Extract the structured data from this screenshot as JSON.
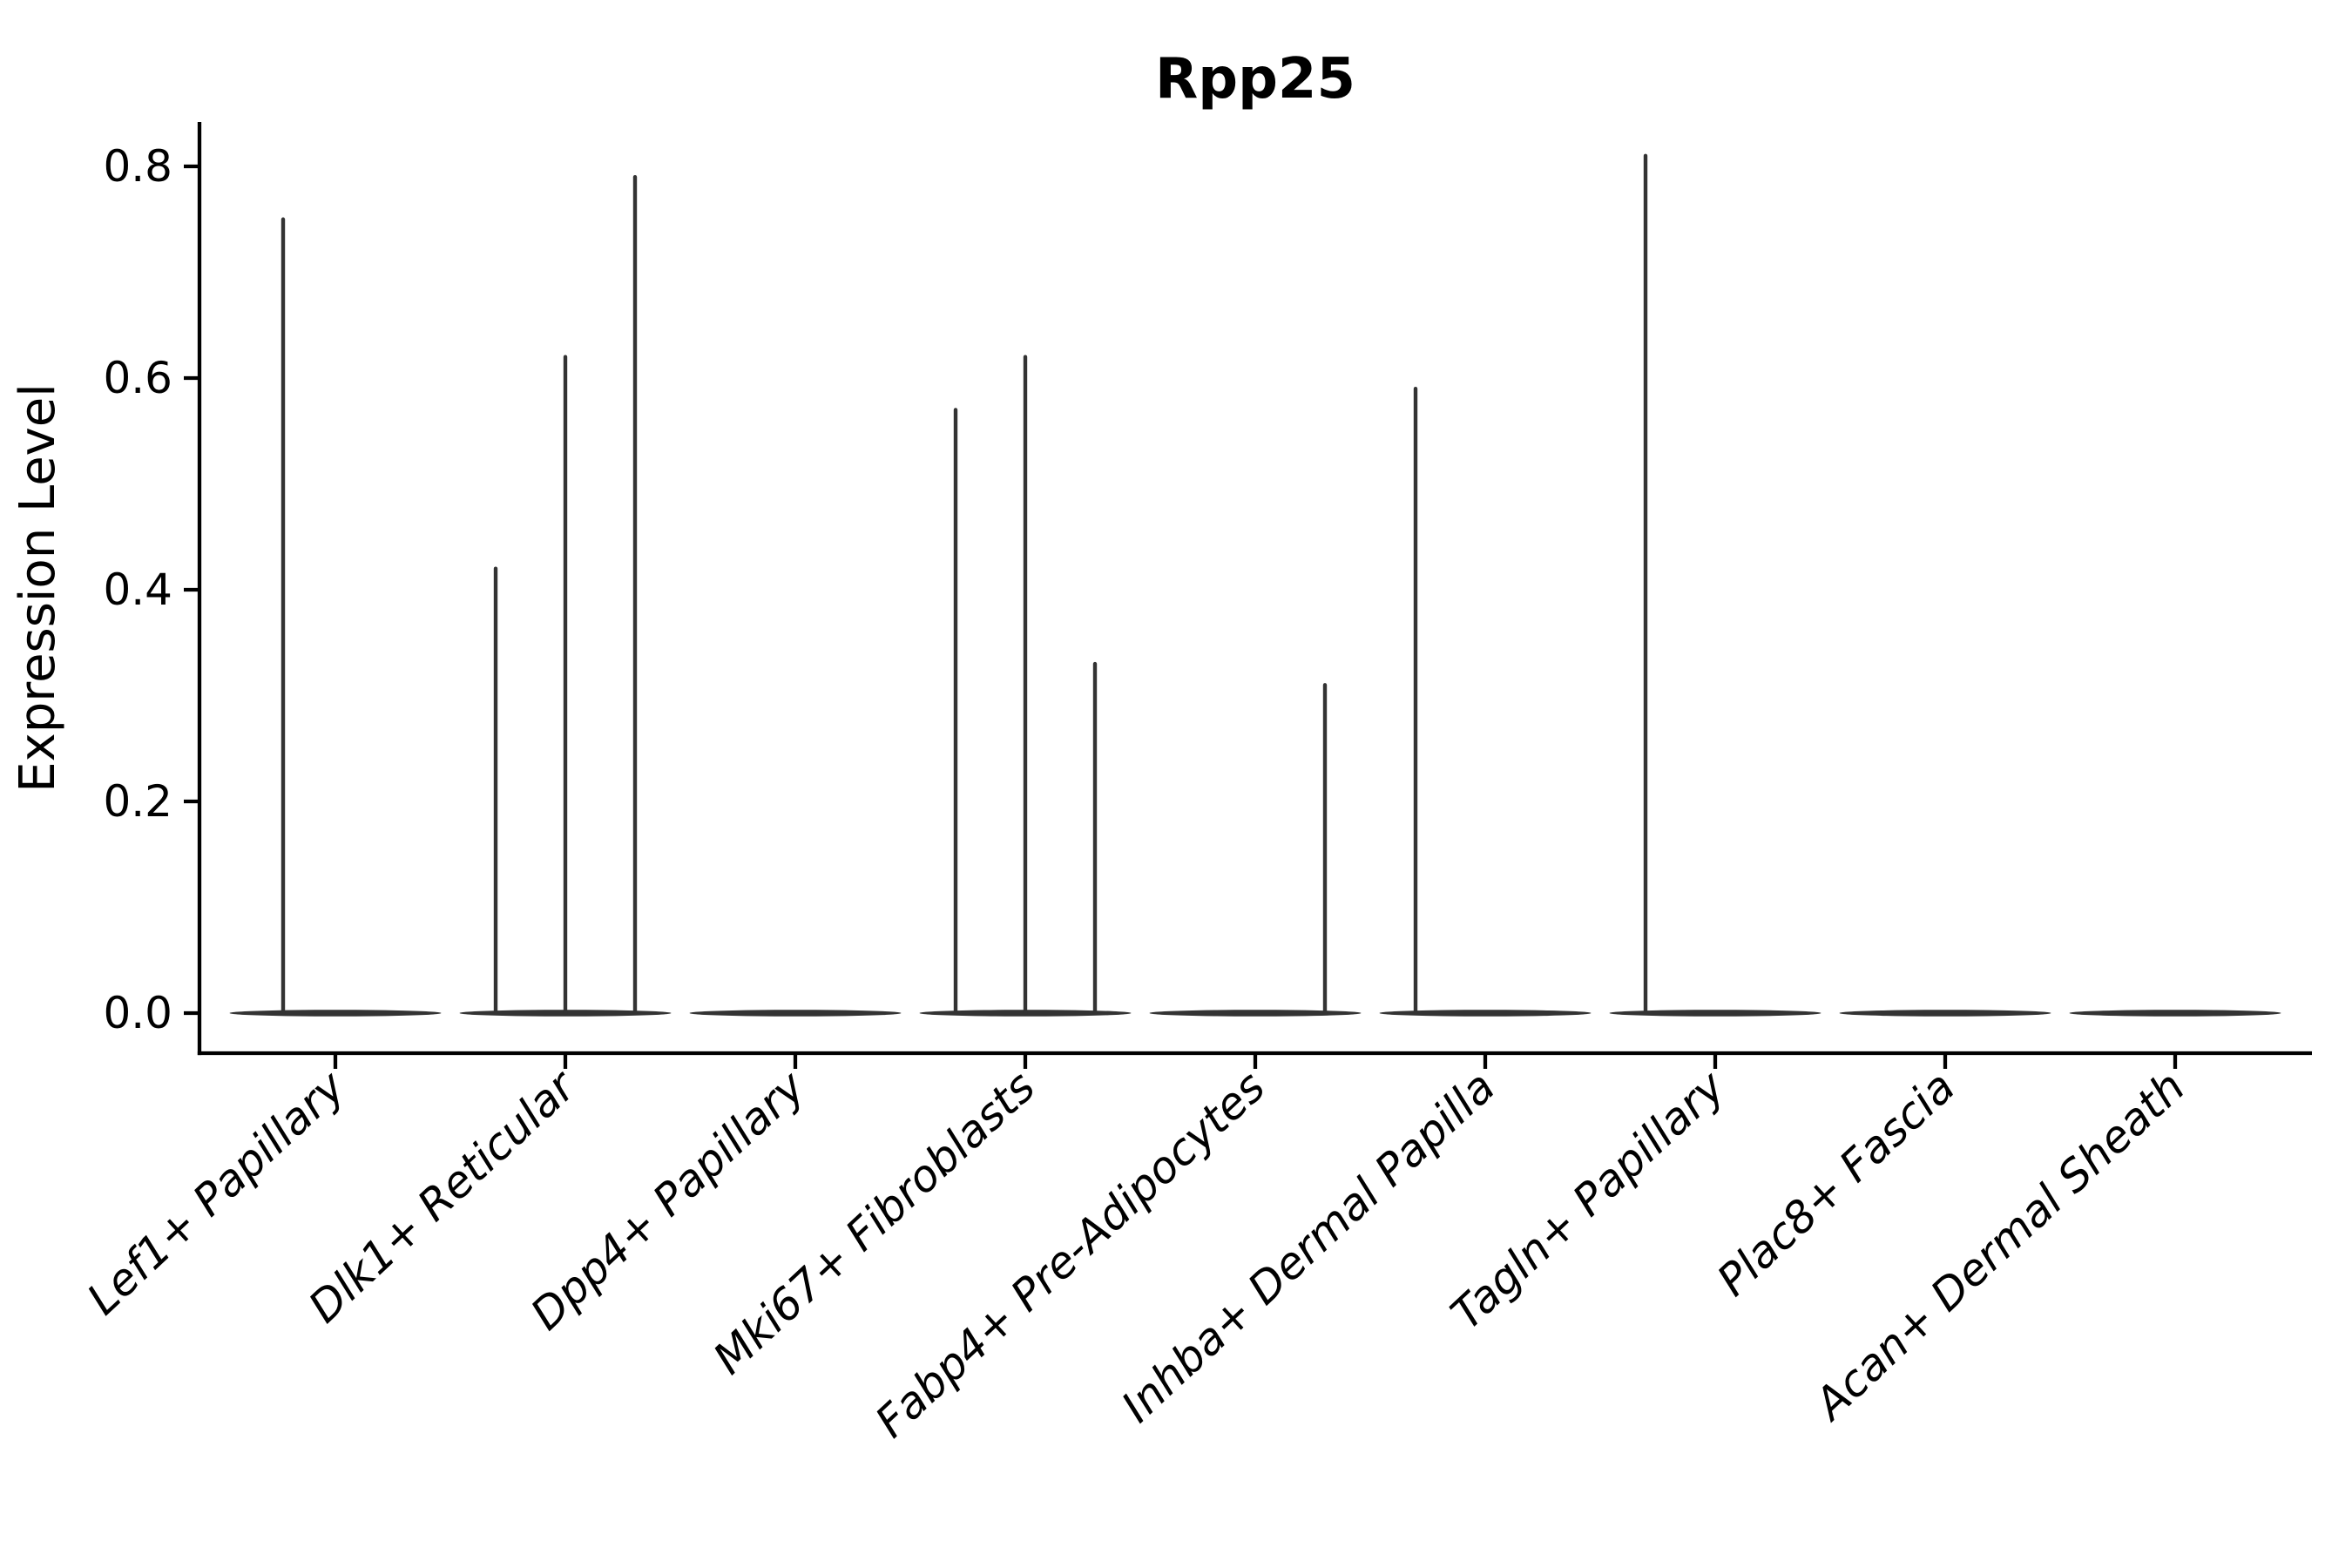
{
  "title": "Rpp25",
  "colors": {
    "violin": "#333333",
    "axis": "#000000",
    "text": "#000000",
    "background": "#ffffff"
  },
  "chart_data": {
    "type": "violin",
    "title": "Rpp25",
    "xlabel": "",
    "ylabel": "Expression Level",
    "ylim": [
      -0.04,
      0.85
    ],
    "grid": false,
    "legend": "none",
    "yticks": [
      0.0,
      0.2,
      0.4,
      0.6,
      0.8
    ],
    "ytick_labels": [
      "0.0",
      "0.2",
      "0.4",
      "0.6",
      "0.8"
    ],
    "categories": [
      "Lef1+ Papillary",
      "Dlk1+ Reticular",
      "Dpp4+ Papillary",
      "Mki67+ Fibroblasts",
      "Fabp4+ Pre-Adipocytes",
      "Inhba+ Dermal Papilla",
      "Tagln+ Papillary",
      "Plac8+ Fascia",
      "Acan+ Dermal Sheath"
    ],
    "series": [
      {
        "category": "Lef1+ Papillary",
        "sub_violin_max": [
          0.75,
          0.0
        ]
      },
      {
        "category": "Dlk1+ Reticular",
        "sub_violin_max": [
          0.42,
          0.62,
          0.79
        ]
      },
      {
        "category": "Dpp4+ Papillary",
        "sub_violin_max": [
          0.0,
          0.0,
          0.0
        ]
      },
      {
        "category": "Mki67+ Fibroblasts",
        "sub_violin_max": [
          0.57,
          0.62,
          0.33
        ]
      },
      {
        "category": "Fabp4+ Pre-Adipocytes",
        "sub_violin_max": [
          0.0,
          0.0,
          0.31
        ]
      },
      {
        "category": "Inhba+ Dermal Papilla",
        "sub_violin_max": [
          0.59,
          0.0,
          0.0
        ]
      },
      {
        "category": "Tagln+ Papillary",
        "sub_violin_max": [
          0.81,
          0.0,
          0.0
        ]
      },
      {
        "category": "Plac8+ Fascia",
        "sub_violin_max": [
          0.0,
          0.0,
          0.0
        ]
      },
      {
        "category": "Acan+ Dermal Sheath",
        "sub_violin_max": [
          0.0,
          0.0,
          0.0
        ]
      }
    ]
  }
}
